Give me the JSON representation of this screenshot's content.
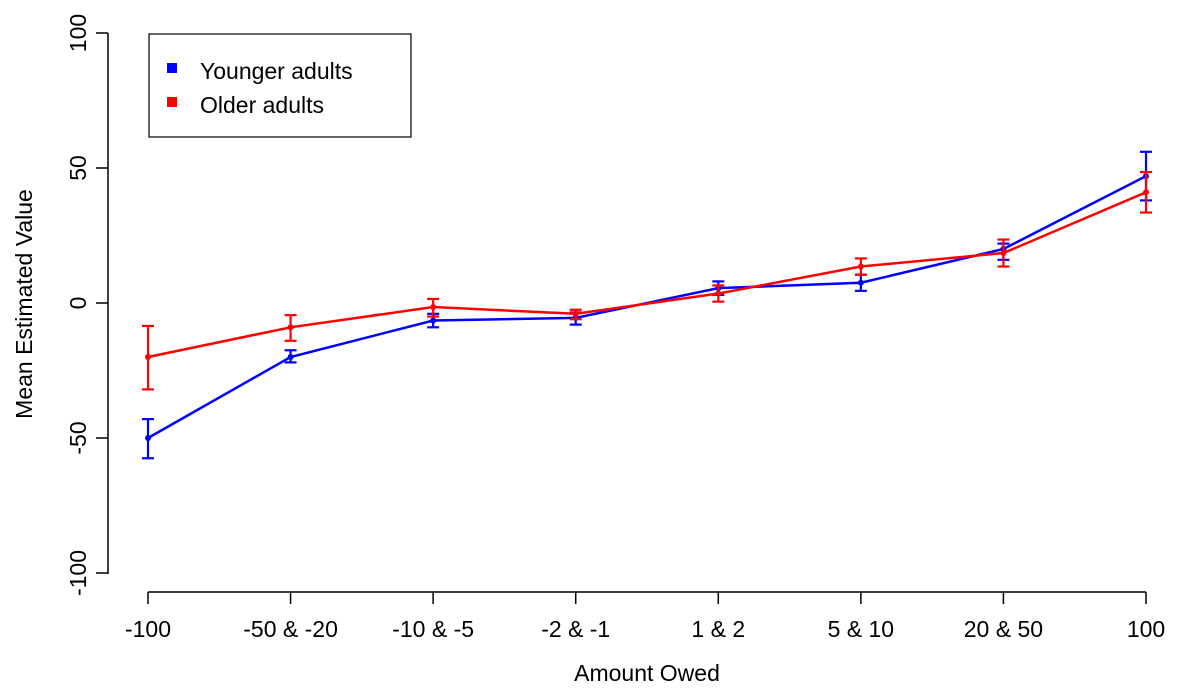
{
  "chart_data": {
    "type": "line",
    "title": "",
    "xlabel": "Amount Owed",
    "ylabel": "Mean Estimated Value",
    "categories": [
      "-100",
      "-50 & -20",
      "-10 & -5",
      "-2 & -1",
      "1 & 2",
      "5 & 10",
      "20 & 50",
      "100"
    ],
    "ylim": [
      -100,
      100
    ],
    "yticks": [
      -100,
      -50,
      0,
      50,
      100
    ],
    "ytick_labels": [
      "-100",
      "-50",
      "0",
      "50",
      "100"
    ],
    "grid": false,
    "legend_position": "top-left",
    "series": [
      {
        "name": "Younger adults",
        "color": "#0000ff",
        "values": [
          -50,
          -20,
          -6.5,
          -5.5,
          5.5,
          7.5,
          20,
          47
        ],
        "error_low": [
          -57.5,
          -22,
          -9,
          -8,
          3,
          4.5,
          16,
          38
        ],
        "error_high": [
          -43,
          -17.5,
          -4,
          -3.5,
          8,
          10.5,
          22,
          56
        ]
      },
      {
        "name": "Older adults",
        "color": "#ff0000",
        "values": [
          -20,
          -9,
          -1.5,
          -4,
          3.5,
          13.5,
          18.5,
          41
        ],
        "error_low": [
          -32,
          -14,
          -5,
          -6,
          0.5,
          10.5,
          13.5,
          33.5
        ],
        "error_high": [
          -8.5,
          -4.5,
          1.5,
          -2.5,
          6.5,
          16.5,
          23.5,
          48.5
        ]
      }
    ]
  }
}
